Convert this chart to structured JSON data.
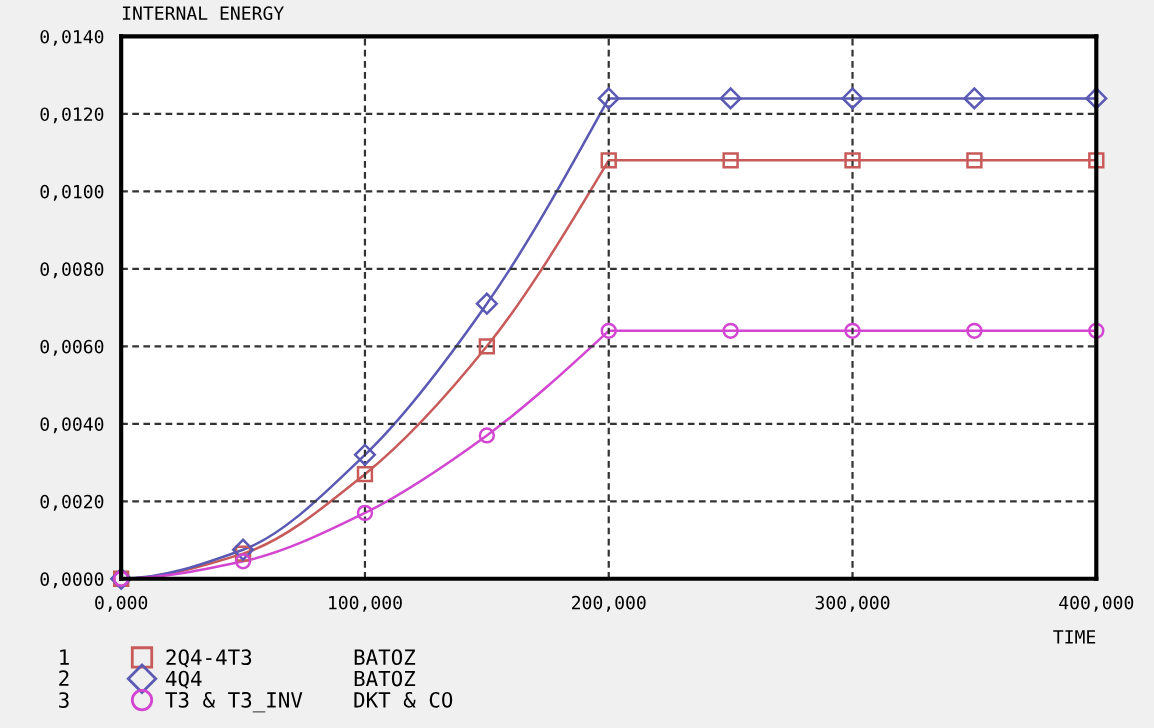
{
  "chart_data": {
    "type": "line",
    "title": "INTERNAL ENERGY",
    "xlabel": "TIME",
    "x": [
      0,
      50,
      100,
      150,
      200,
      250,
      300,
      350,
      400
    ],
    "annotations": [
      "1",
      "2",
      "3"
    ],
    "series": [
      {
        "name": "2Q4-4T3        BATOZ",
        "color": "#c85a5a",
        "marker": "square",
        "values": [
          0,
          0.00065,
          0.0027,
          0.006,
          0.0108,
          0.0108,
          0.0108,
          0.0108,
          0.0108
        ]
      },
      {
        "name": "4Q4            BATOZ",
        "color": "#5a5ab4",
        "marker": "diamond",
        "values": [
          0,
          0.00075,
          0.0032,
          0.0071,
          0.0124,
          0.0124,
          0.0124,
          0.0124,
          0.0124
        ]
      },
      {
        "name": "T3 & T3_INV    DKT & CO",
        "color": "#d246d2",
        "marker": "circle",
        "values": [
          0,
          0.00045,
          0.0017,
          0.0037,
          0.0064,
          0.0064,
          0.0064,
          0.0064,
          0.0064
        ]
      }
    ],
    "xlim": [
      0,
      400
    ],
    "ylim": [
      0,
      0.014
    ],
    "xticks": [
      {
        "value": 0,
        "label": "0,000"
      },
      {
        "value": 100,
        "label": "100,000"
      },
      {
        "value": 200,
        "label": "200,000"
      },
      {
        "value": 300,
        "label": "300,000"
      },
      {
        "value": 400,
        "label": "400,000"
      }
    ],
    "yticks": [
      {
        "value": 0,
        "label": "0,0000"
      },
      {
        "value": 0.002,
        "label": "0,0020"
      },
      {
        "value": 0.004,
        "label": "0,0040"
      },
      {
        "value": 0.006,
        "label": "0,0060"
      },
      {
        "value": 0.008,
        "label": "0,0080"
      },
      {
        "value": 0.01,
        "label": "0,0100"
      },
      {
        "value": 0.012,
        "label": "0,0120"
      },
      {
        "value": 0.014,
        "label": "0,0140"
      }
    ],
    "grid": true,
    "line_style": "solid",
    "legend": "bottom left"
  }
}
